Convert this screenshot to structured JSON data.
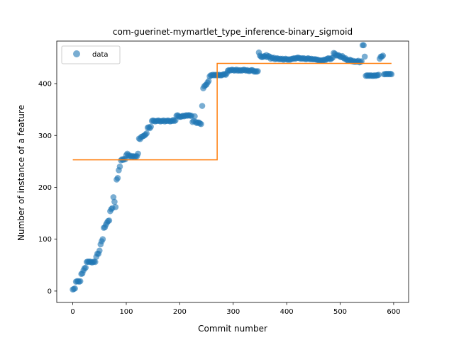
{
  "chart_data": {
    "type": "scatter",
    "title": "com-guerinet-mymartlet_type_inference-binary_sigmoid",
    "xlabel": "Commit number",
    "ylabel": "Number of instance of a feature",
    "xlim": [
      -30,
      628
    ],
    "ylim": [
      -22,
      482
    ],
    "xticks": [
      0,
      100,
      200,
      300,
      400,
      500,
      600
    ],
    "yticks": [
      0,
      100,
      200,
      300,
      400
    ],
    "grid": false,
    "legend": {
      "position": "top-left",
      "entries": [
        "data"
      ]
    },
    "colors": {
      "scatter": "#1f77b4",
      "fit": "#ff7f0e"
    },
    "series": [
      {
        "name": "data",
        "kind": "scatter",
        "points": [
          [
            0,
            3
          ],
          [
            2,
            4
          ],
          [
            4,
            5
          ],
          [
            6,
            18
          ],
          [
            8,
            19
          ],
          [
            10,
            19
          ],
          [
            12,
            18
          ],
          [
            14,
            19
          ],
          [
            16,
            33
          ],
          [
            18,
            34
          ],
          [
            20,
            40
          ],
          [
            22,
            44
          ],
          [
            24,
            45
          ],
          [
            26,
            56
          ],
          [
            28,
            57
          ],
          [
            30,
            56
          ],
          [
            32,
            57
          ],
          [
            34,
            56
          ],
          [
            36,
            55
          ],
          [
            38,
            56
          ],
          [
            40,
            57
          ],
          [
            42,
            56
          ],
          [
            44,
            66
          ],
          [
            46,
            72
          ],
          [
            48,
            72
          ],
          [
            50,
            78
          ],
          [
            52,
            90
          ],
          [
            54,
            96
          ],
          [
            56,
            100
          ],
          [
            58,
            122
          ],
          [
            60,
            123
          ],
          [
            62,
            128
          ],
          [
            64,
            132
          ],
          [
            66,
            135
          ],
          [
            68,
            136
          ],
          [
            70,
            154
          ],
          [
            72,
            158
          ],
          [
            74,
            160
          ],
          [
            76,
            181
          ],
          [
            78,
            172
          ],
          [
            80,
            162
          ],
          [
            82,
            215
          ],
          [
            84,
            218
          ],
          [
            86,
            233
          ],
          [
            88,
            240
          ],
          [
            90,
            252
          ],
          [
            92,
            254
          ],
          [
            94,
            253
          ],
          [
            96,
            255
          ],
          [
            98,
            254
          ],
          [
            100,
            262
          ],
          [
            102,
            265
          ],
          [
            104,
            262
          ],
          [
            106,
            260
          ],
          [
            108,
            261
          ],
          [
            110,
            259
          ],
          [
            112,
            260
          ],
          [
            114,
            260
          ],
          [
            116,
            259
          ],
          [
            118,
            260
          ],
          [
            120,
            260
          ],
          [
            122,
            265
          ],
          [
            124,
            294
          ],
          [
            126,
            293
          ],
          [
            128,
            297
          ],
          [
            130,
            298
          ],
          [
            132,
            299
          ],
          [
            134,
            300
          ],
          [
            136,
            302
          ],
          [
            138,
            304
          ],
          [
            140,
            315
          ],
          [
            142,
            316
          ],
          [
            144,
            314
          ],
          [
            146,
            317
          ],
          [
            148,
            328
          ],
          [
            150,
            329
          ],
          [
            152,
            328
          ],
          [
            154,
            327
          ],
          [
            156,
            328
          ],
          [
            158,
            328
          ],
          [
            160,
            329
          ],
          [
            162,
            328
          ],
          [
            164,
            327
          ],
          [
            166,
            328
          ],
          [
            168,
            328
          ],
          [
            170,
            329
          ],
          [
            172,
            327
          ],
          [
            174,
            328
          ],
          [
            176,
            328
          ],
          [
            178,
            329
          ],
          [
            180,
            328
          ],
          [
            182,
            327
          ],
          [
            184,
            328
          ],
          [
            186,
            328
          ],
          [
            188,
            330
          ],
          [
            190,
            328
          ],
          [
            192,
            329
          ],
          [
            194,
            338
          ],
          [
            196,
            339
          ],
          [
            198,
            337
          ],
          [
            200,
            336
          ],
          [
            202,
            336
          ],
          [
            204,
            337
          ],
          [
            206,
            338
          ],
          [
            208,
            337
          ],
          [
            210,
            338
          ],
          [
            212,
            339
          ],
          [
            214,
            338
          ],
          [
            216,
            339
          ],
          [
            218,
            339
          ],
          [
            220,
            338
          ],
          [
            222,
            338
          ],
          [
            224,
            326
          ],
          [
            226,
            328
          ],
          [
            228,
            337
          ],
          [
            230,
            326
          ],
          [
            232,
            324
          ],
          [
            234,
            325
          ],
          [
            236,
            325
          ],
          [
            238,
            323
          ],
          [
            240,
            322
          ],
          [
            242,
            357
          ],
          [
            244,
            391
          ],
          [
            246,
            395
          ],
          [
            248,
            397
          ],
          [
            250,
            398
          ],
          [
            252,
            402
          ],
          [
            254,
            405
          ],
          [
            256,
            414
          ],
          [
            258,
            416
          ],
          [
            260,
            416
          ],
          [
            262,
            417
          ],
          [
            264,
            416
          ],
          [
            266,
            417
          ],
          [
            268,
            416
          ],
          [
            270,
            417
          ],
          [
            272,
            416
          ],
          [
            274,
            417
          ],
          [
            276,
            416
          ],
          [
            278,
            416
          ],
          [
            280,
            417
          ],
          [
            282,
            418
          ],
          [
            284,
            418
          ],
          [
            286,
            417
          ],
          [
            288,
            420
          ],
          [
            290,
            425
          ],
          [
            292,
            426
          ],
          [
            294,
            425
          ],
          [
            296,
            426
          ],
          [
            298,
            427
          ],
          [
            300,
            426
          ],
          [
            302,
            425
          ],
          [
            304,
            426
          ],
          [
            306,
            427
          ],
          [
            308,
            425
          ],
          [
            310,
            426
          ],
          [
            312,
            425
          ],
          [
            314,
            426
          ],
          [
            316,
            425
          ],
          [
            318,
            426
          ],
          [
            320,
            427
          ],
          [
            322,
            426
          ],
          [
            324,
            425
          ],
          [
            326,
            426
          ],
          [
            328,
            425
          ],
          [
            330,
            424
          ],
          [
            332,
            425
          ],
          [
            334,
            426
          ],
          [
            336,
            426
          ],
          [
            338,
            424
          ],
          [
            340,
            423
          ],
          [
            342,
            424
          ],
          [
            344,
            423
          ],
          [
            346,
            424
          ],
          [
            348,
            460
          ],
          [
            350,
            454
          ],
          [
            352,
            452
          ],
          [
            354,
            451
          ],
          [
            356,
            452
          ],
          [
            358,
            453
          ],
          [
            360,
            452
          ],
          [
            362,
            455
          ],
          [
            364,
            451
          ],
          [
            366,
            453
          ],
          [
            368,
            452
          ],
          [
            370,
            448
          ],
          [
            372,
            450
          ],
          [
            374,
            449
          ],
          [
            376,
            450
          ],
          [
            378,
            447
          ],
          [
            380,
            448
          ],
          [
            382,
            449
          ],
          [
            384,
            448
          ],
          [
            386,
            447
          ],
          [
            388,
            448
          ],
          [
            390,
            447
          ],
          [
            392,
            448
          ],
          [
            394,
            446
          ],
          [
            396,
            447
          ],
          [
            398,
            448
          ],
          [
            400,
            447
          ],
          [
            402,
            446
          ],
          [
            404,
            447
          ],
          [
            406,
            446
          ],
          [
            408,
            447
          ],
          [
            410,
            448
          ],
          [
            412,
            448
          ],
          [
            414,
            449
          ],
          [
            416,
            448
          ],
          [
            418,
            449
          ],
          [
            420,
            450
          ],
          [
            422,
            450
          ],
          [
            424,
            449
          ],
          [
            426,
            448
          ],
          [
            428,
            449
          ],
          [
            430,
            448
          ],
          [
            432,
            449
          ],
          [
            434,
            448
          ],
          [
            436,
            447
          ],
          [
            438,
            448
          ],
          [
            440,
            449
          ],
          [
            442,
            448
          ],
          [
            444,
            447
          ],
          [
            446,
            448
          ],
          [
            448,
            447
          ],
          [
            450,
            447
          ],
          [
            452,
            447
          ],
          [
            454,
            447
          ],
          [
            456,
            446
          ],
          [
            458,
            446
          ],
          [
            460,
            445
          ],
          [
            462,
            444
          ],
          [
            464,
            445
          ],
          [
            466,
            444
          ],
          [
            468,
            445
          ],
          [
            470,
            446
          ],
          [
            472,
            445
          ],
          [
            474,
            447
          ],
          [
            476,
            448
          ],
          [
            478,
            449
          ],
          [
            480,
            448
          ],
          [
            482,
            447
          ],
          [
            484,
            449
          ],
          [
            486,
            450
          ],
          [
            488,
            459
          ],
          [
            490,
            458
          ],
          [
            492,
            455
          ],
          [
            494,
            454
          ],
          [
            496,
            455
          ],
          [
            498,
            454
          ],
          [
            500,
            452
          ],
          [
            502,
            451
          ],
          [
            504,
            453
          ],
          [
            506,
            450
          ],
          [
            508,
            448
          ],
          [
            510,
            449
          ],
          [
            512,
            446
          ],
          [
            514,
            445
          ],
          [
            516,
            444
          ],
          [
            518,
            446
          ],
          [
            520,
            445
          ],
          [
            522,
            443
          ],
          [
            524,
            444
          ],
          [
            526,
            442
          ],
          [
            528,
            443
          ],
          [
            530,
            442
          ],
          [
            532,
            443
          ],
          [
            534,
            444
          ],
          [
            536,
            441
          ],
          [
            538,
            442
          ],
          [
            540,
            443
          ],
          [
            542,
            474
          ],
          [
            544,
            474
          ],
          [
            546,
            452
          ],
          [
            548,
            415
          ],
          [
            550,
            416
          ],
          [
            552,
            415
          ],
          [
            554,
            416
          ],
          [
            556,
            415
          ],
          [
            558,
            416
          ],
          [
            560,
            415
          ],
          [
            562,
            415
          ],
          [
            564,
            416
          ],
          [
            566,
            415
          ],
          [
            568,
            416
          ],
          [
            570,
            416
          ],
          [
            572,
            417
          ],
          [
            574,
            448
          ],
          [
            576,
            452
          ],
          [
            578,
            452
          ],
          [
            580,
            454
          ],
          [
            582,
            418
          ],
          [
            584,
            418
          ],
          [
            586,
            419
          ],
          [
            588,
            418
          ],
          [
            590,
            419
          ],
          [
            592,
            418
          ],
          [
            594,
            419
          ],
          [
            596,
            418
          ]
        ]
      },
      {
        "name": "",
        "kind": "step",
        "points": [
          [
            0,
            253
          ],
          [
            270,
            253
          ],
          [
            270,
            439
          ],
          [
            596,
            439
          ]
        ]
      }
    ]
  }
}
